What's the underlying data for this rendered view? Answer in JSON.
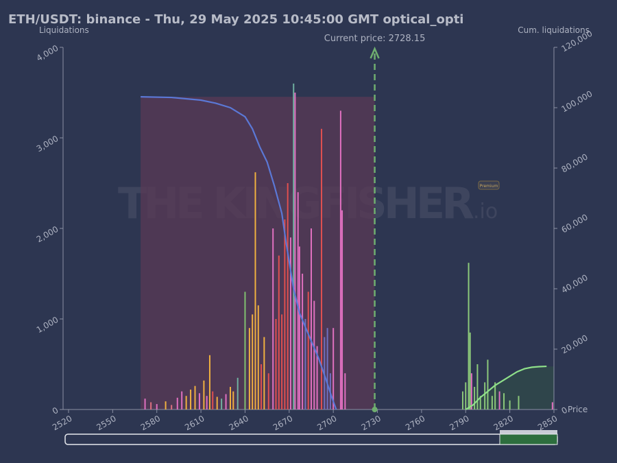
{
  "chart_data": {
    "type": "bar",
    "title": "ETH/USDT: binance - Thu, 29 May 2025 10:45:00 GMT optical_opti",
    "y_label": "Liquidations",
    "y2_label": "Cum. liquidations",
    "x_label": "Price",
    "xlim": [
      2520,
      2850
    ],
    "xticks": [
      2520,
      2550,
      2580,
      2610,
      2640,
      2670,
      2700,
      2730,
      2760,
      2790,
      2820,
      2850
    ],
    "ylim": [
      0,
      4000
    ],
    "yticks": [
      0,
      {
        "value": 1000,
        "label": "1,000"
      },
      {
        "value": 2000,
        "label": "2,000"
      },
      {
        "value": 3000,
        "label": "3,000"
      },
      {
        "value": 4000,
        "label": "4,000"
      }
    ],
    "y2lim": [
      0,
      120000
    ],
    "y2ticks": [
      0,
      {
        "value": 20000,
        "label": "20,000"
      },
      {
        "value": 40000,
        "label": "40,000"
      },
      {
        "value": 60000,
        "label": "60,000"
      },
      {
        "value": 80000,
        "label": "80,000"
      },
      {
        "value": 100000,
        "label": "100,000"
      },
      {
        "value": 120000,
        "label": "120,000"
      }
    ],
    "series": [
      {
        "type": "bar",
        "x": [
          2572,
          2576,
          2580,
          2586,
          2590,
          2594,
          2597,
          2600,
          2603,
          2606,
          2609,
          2612,
          2614,
          2616,
          2618,
          2621,
          2624,
          2627,
          2630,
          2632,
          2635,
          2640,
          2643,
          2645,
          2647,
          2649,
          2651,
          2653,
          2656,
          2659,
          2661,
          2663,
          2665,
          2667,
          2669,
          2671,
          2673,
          2674,
          2676,
          2677,
          2679,
          2681,
          2683,
          2685,
          2687,
          2689,
          2692,
          2694,
          2696,
          2698,
          2700,
          2705,
          2706,
          2708
        ],
        "values": [
          120,
          80,
          60,
          90,
          50,
          130,
          200,
          150,
          220,
          260,
          180,
          320,
          150,
          600,
          200,
          140,
          120,
          170,
          250,
          200,
          350,
          1300,
          900,
          1050,
          2620,
          1150,
          500,
          800,
          400,
          2000,
          1000,
          1700,
          1050,
          2100,
          2500,
          1900,
          3600,
          3500,
          2400,
          1800,
          1500,
          1000,
          1300,
          2000,
          1200,
          700,
          3100,
          800,
          900,
          400,
          900,
          3300,
          2200,
          400
        ],
        "colors": [
          "#e070c0",
          "#e07080",
          "#e070c0",
          "#f0b040",
          "#e07080",
          "#e070c0",
          "#e070c0",
          "#f0b040",
          "#f0b040",
          "#f0b040",
          "#e070c0",
          "#f0b040",
          "#e070c0",
          "#f0b040",
          "#e05050",
          "#f0b040",
          "#70b0a0",
          "#e070c0",
          "#f0b040",
          "#f0b040",
          "#70b0a0",
          "#80c070",
          "#f0b040",
          "#f0b040",
          "#f0b040",
          "#f0b040",
          "#e05050",
          "#f0b040",
          "#e05050",
          "#e070c0",
          "#e05050",
          "#e05050",
          "#e05050",
          "#e05050",
          "#e05050",
          "#e070c0",
          "#70b0a0",
          "#e070c0",
          "#e070c0",
          "#e070c0",
          "#e070c0",
          "#7070c0",
          "#e05050",
          "#e070c0",
          "#e070c0",
          "#e070c0",
          "#e05050",
          "#7070c0",
          "#7070c0",
          "#7070c0",
          "#e070c0",
          "#e070c0",
          "#e070c0",
          "#e070c0"
        ]
      },
      {
        "type": "bar",
        "x": [
          2788,
          2790,
          2792,
          2793,
          2794,
          2796,
          2798,
          2800,
          2803,
          2805,
          2808,
          2810,
          2813,
          2816,
          2820,
          2826,
          2849
        ],
        "values": [
          200,
          300,
          1620,
          850,
          400,
          250,
          500,
          150,
          300,
          550,
          150,
          300,
          200,
          180,
          100,
          150,
          80
        ],
        "colors": [
          "#8cc97a",
          "#8cc97a",
          "#8cc97a",
          "#8cc97a",
          "#e070c0",
          "#8cc97a",
          "#8cc97a",
          "#8cc97a",
          "#8cc97a",
          "#8cc97a",
          "#8cc97a",
          "#8cc97a",
          "#e070c0",
          "#8cc97a",
          "#8cc97a",
          "#8cc97a",
          "#e070c0"
        ]
      },
      {
        "type": "line",
        "axis": "y2",
        "color": "#5b78d6",
        "fill": "#5a3a55",
        "x": [
          2569,
          2590,
          2610,
          2620,
          2630,
          2640,
          2645,
          2650,
          2655,
          2660,
          2665,
          2668,
          2670,
          2673,
          2677,
          2683,
          2690,
          2695,
          2699,
          2702
        ],
        "values": [
          103600,
          103400,
          102500,
          101500,
          100000,
          97000,
          93000,
          87000,
          82000,
          74000,
          65000,
          55000,
          49000,
          40000,
          32000,
          25000,
          17000,
          10000,
          4000,
          0
        ]
      },
      {
        "type": "line",
        "axis": "y2",
        "color": "#8fe08a",
        "fill": "#2f4a4a",
        "x": [
          2790,
          2795,
          2800,
          2805,
          2810,
          2815,
          2820,
          2825,
          2830,
          2835,
          2840,
          2845
        ],
        "values": [
          0,
          1500,
          4000,
          6000,
          8000,
          9500,
          11000,
          12500,
          13500,
          14000,
          14200,
          14300
        ]
      }
    ],
    "annotations": [
      {
        "text": "Current price: 2728.15",
        "x": 2728.15,
        "color": "#6fae6f"
      }
    ],
    "watermark": {
      "text": "THE KINGFISHER",
      "suffix": ".io",
      "badge": "Premium"
    }
  }
}
